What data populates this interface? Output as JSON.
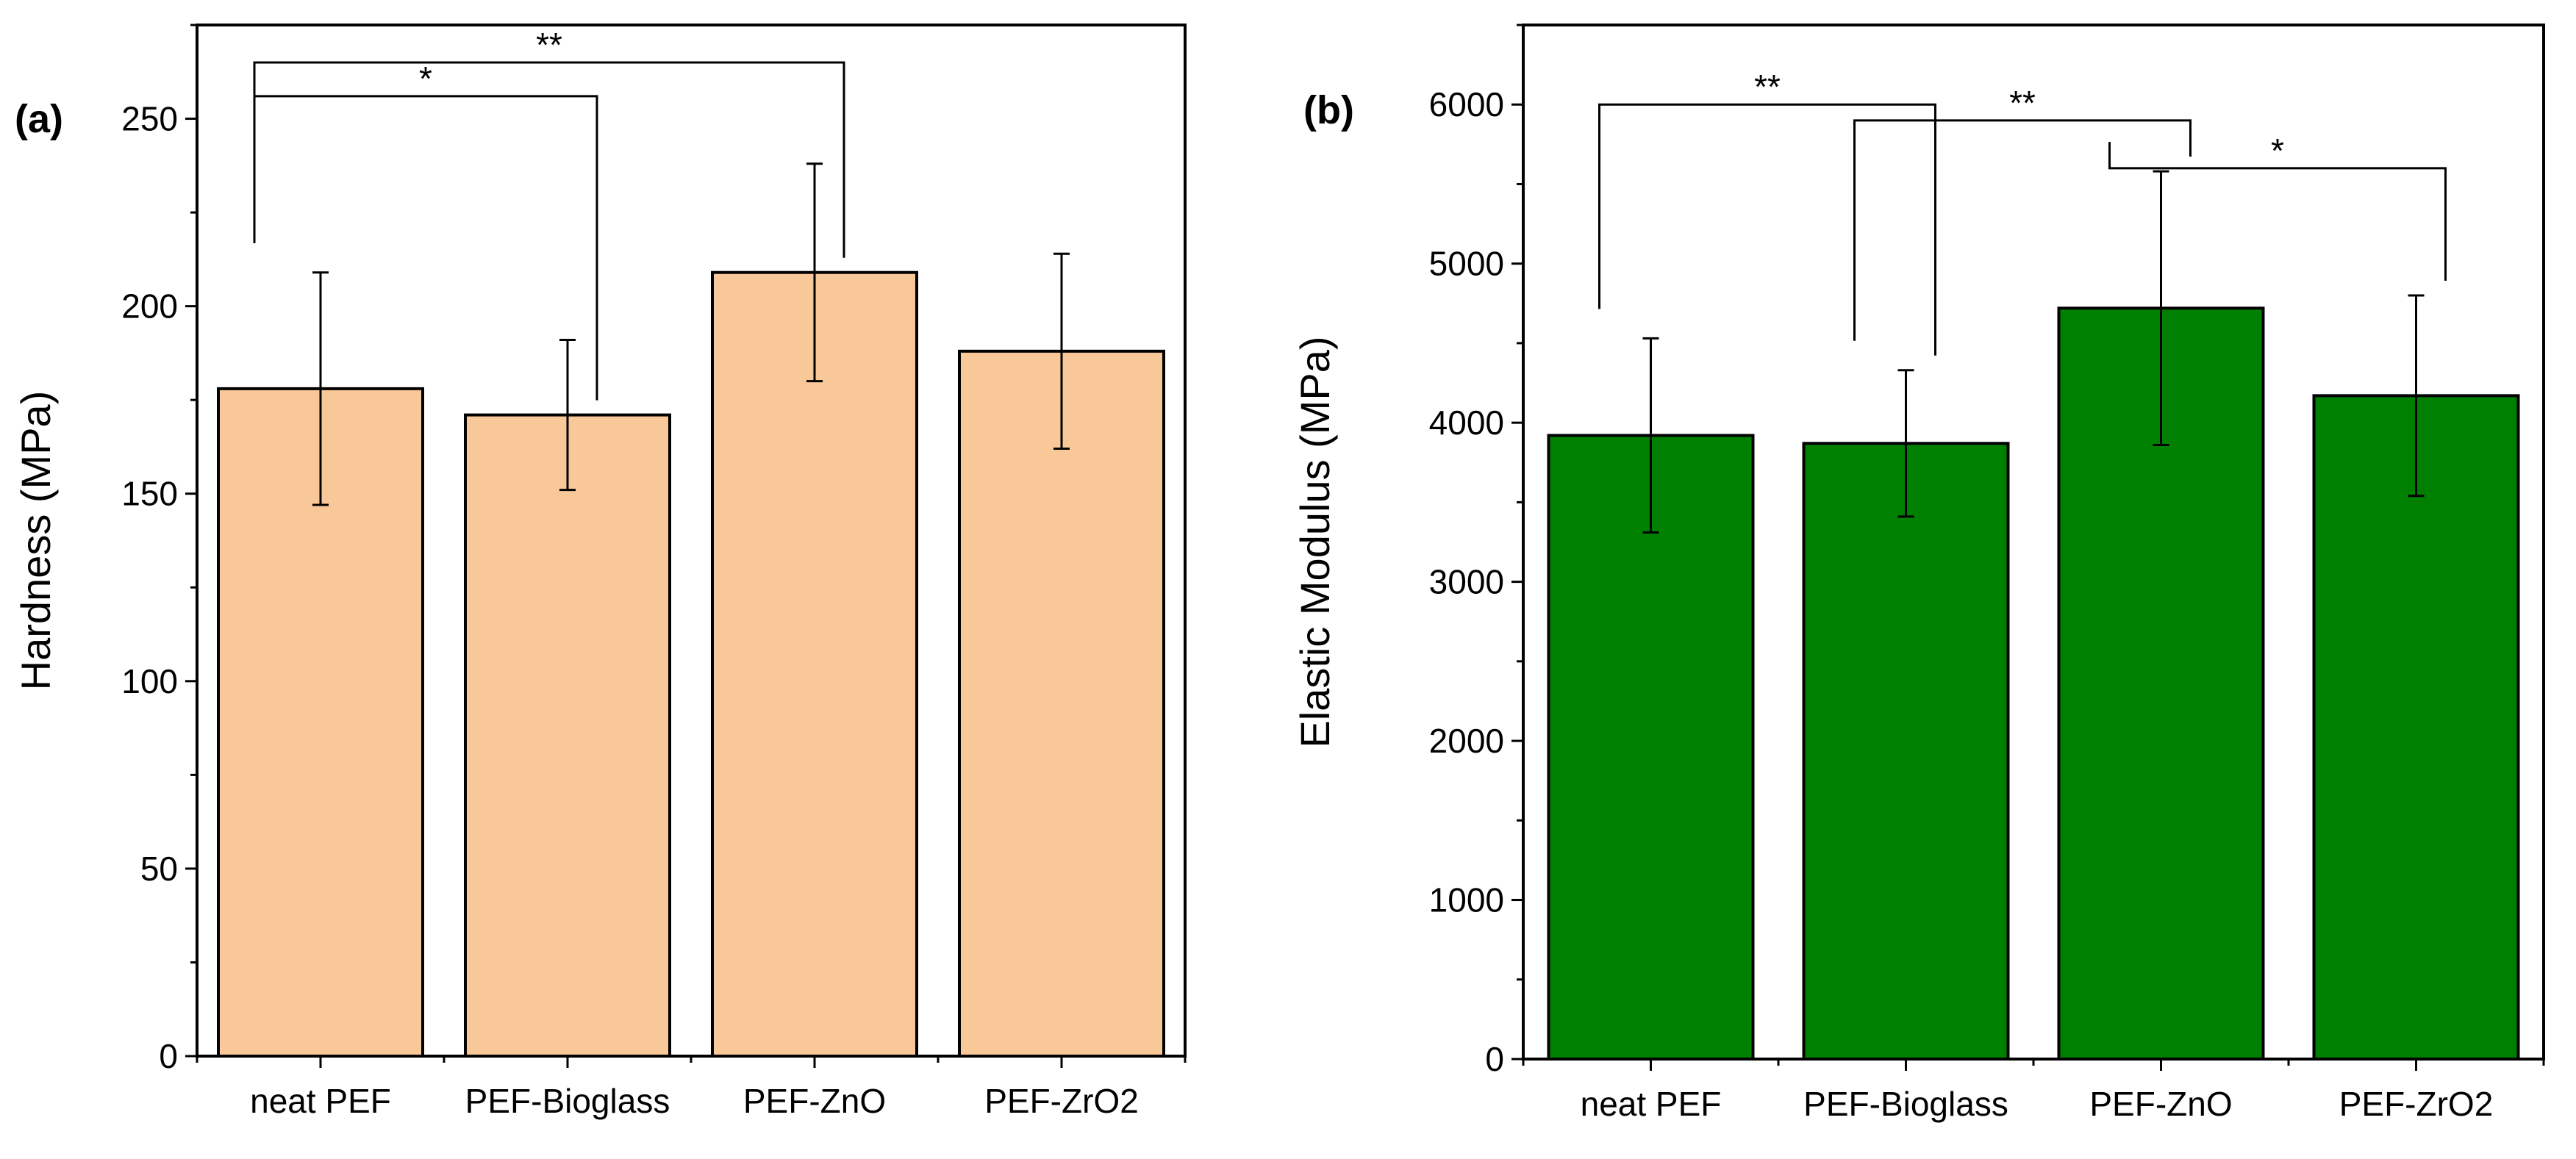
{
  "chart_data": [
    {
      "type": "bar",
      "panel_label": "(a)",
      "title": "",
      "xlabel": "",
      "ylabel": "Hardness (MPa)",
      "categories": [
        "neat PEF",
        "PEF-Bioglass",
        "PEF-ZnO",
        "PEF-ZrO2"
      ],
      "values": [
        178,
        171,
        209,
        188
      ],
      "errors": [
        31,
        20,
        29,
        26
      ],
      "ylim": [
        0,
        275
      ],
      "yticks": [
        0,
        50,
        100,
        150,
        200,
        250
      ],
      "ytick_labels": [
        "0",
        "50",
        "100",
        "150",
        "200",
        "250"
      ],
      "bar_color": "#f9c898",
      "significance": [
        {
          "from": 0,
          "to": 2,
          "label": "**",
          "top": 265
        },
        {
          "from": 0,
          "to": 1,
          "label": "*",
          "top": 256
        }
      ]
    },
    {
      "type": "bar",
      "panel_label": "(b)",
      "title": "",
      "xlabel": "",
      "ylabel": "Elastic Modulus (MPa)",
      "categories": [
        "neat PEF",
        "PEF-Bioglass",
        "PEF-ZnO",
        "PEF-ZrO2"
      ],
      "values": [
        3920,
        3870,
        4720,
        4170
      ],
      "errors": [
        610,
        460,
        860,
        630
      ],
      "ylim": [
        0,
        6500
      ],
      "yticks": [
        0,
        1000,
        2000,
        3000,
        4000,
        5000,
        6000
      ],
      "ytick_labels": [
        "0",
        "1000",
        "2000",
        "3000",
        "4000",
        "5000",
        "6000"
      ],
      "bar_color": "#008000",
      "significance": [
        {
          "from": 0,
          "to": 1,
          "label": "**",
          "top": 6000
        },
        {
          "from": 1,
          "to": 2,
          "label": "**",
          "top": 5900
        },
        {
          "from": 2,
          "to": 3,
          "label": "*",
          "top": 5600
        }
      ]
    }
  ]
}
